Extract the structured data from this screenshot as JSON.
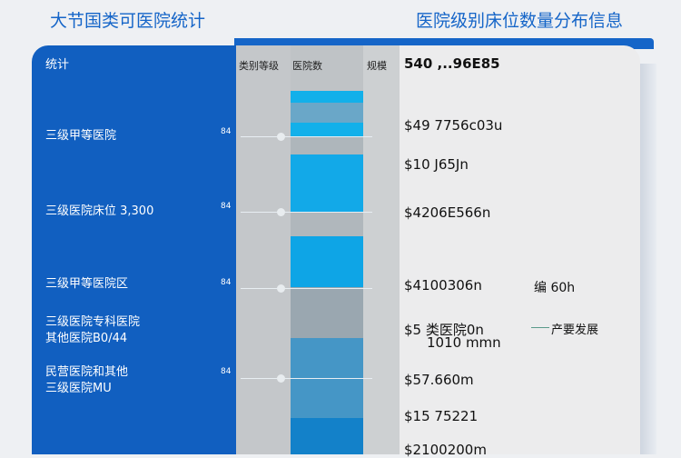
{
  "header": {
    "title_left": "大节国类可医院统计",
    "title_right": "医院级别床位数量分布信息"
  },
  "table": {
    "left_header": "统计",
    "col_headers": [
      "类别等级",
      "医院数",
      "规模"
    ],
    "first_value": "540 ,..96E85",
    "rows": [
      {
        "label": [
          "三级甲等医院"
        ],
        "small": "84"
      },
      {
        "label": [
          "三级医院床位 3,300"
        ],
        "small": "84"
      },
      {
        "label": [
          "三级甲等医院区"
        ],
        "small": "84"
      },
      {
        "label": [
          "三级医院专科医院",
          "其他医院B0/44"
        ],
        "small": ""
      },
      {
        "label": [
          "民营医院和其他",
          "三级医院MU"
        ],
        "small": "84"
      }
    ],
    "values": [
      "$49 7756c03u",
      "$10 J65Jn",
      "$4206E566n",
      "$4100306n",
      "$5 类医院0n",
      "1010 mmn",
      "$57.660m",
      "$15 75221",
      "$2100200m"
    ],
    "side_notes": [
      "编 60h",
      "产要发展"
    ]
  },
  "colors": {
    "blue": "#115fc0",
    "cyan": "#12aee8",
    "gray": "#c4c7ca"
  }
}
